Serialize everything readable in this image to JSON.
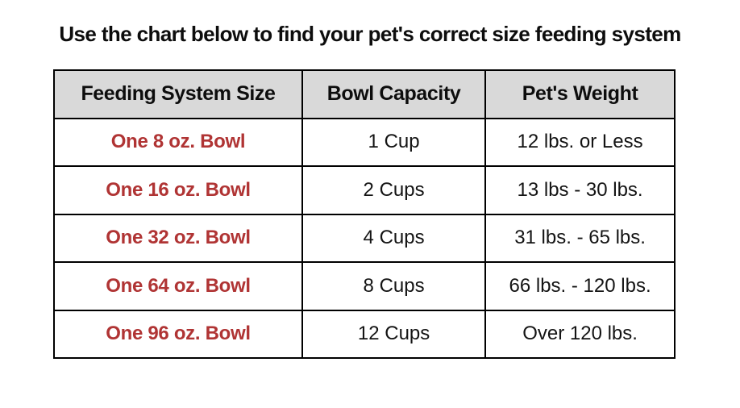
{
  "title": "Use the chart below to find your pet's correct size feeding system",
  "colors": {
    "header_background": "#d9d9d9",
    "table_border": "#000000",
    "size_column_text": "#b03434",
    "body_text": "#141414",
    "title_text": "#0d0d0d",
    "page_background": "#ffffff"
  },
  "chart_data": {
    "type": "table",
    "title": "Use the chart below to find your pet's correct size feeding system",
    "columns": [
      "Feeding System Size",
      "Bowl Capacity",
      "Pet's Weight"
    ],
    "rows": [
      [
        "One 8 oz. Bowl",
        "1 Cup",
        "12 lbs. or Less"
      ],
      [
        "One 16 oz. Bowl",
        "2 Cups",
        "13 lbs - 30 lbs."
      ],
      [
        "One 32 oz. Bowl",
        "4 Cups",
        "31 lbs. - 65 lbs."
      ],
      [
        "One 64 oz. Bowl",
        "8 Cups",
        "66 lbs. - 120 lbs."
      ],
      [
        "One 96 oz. Bowl",
        "12 Cups",
        "Over 120 lbs."
      ]
    ],
    "layout_hints": {
      "header_row_shaded": true,
      "grid": true,
      "first_column_bold_red": true,
      "cell_alignment": "center"
    }
  }
}
